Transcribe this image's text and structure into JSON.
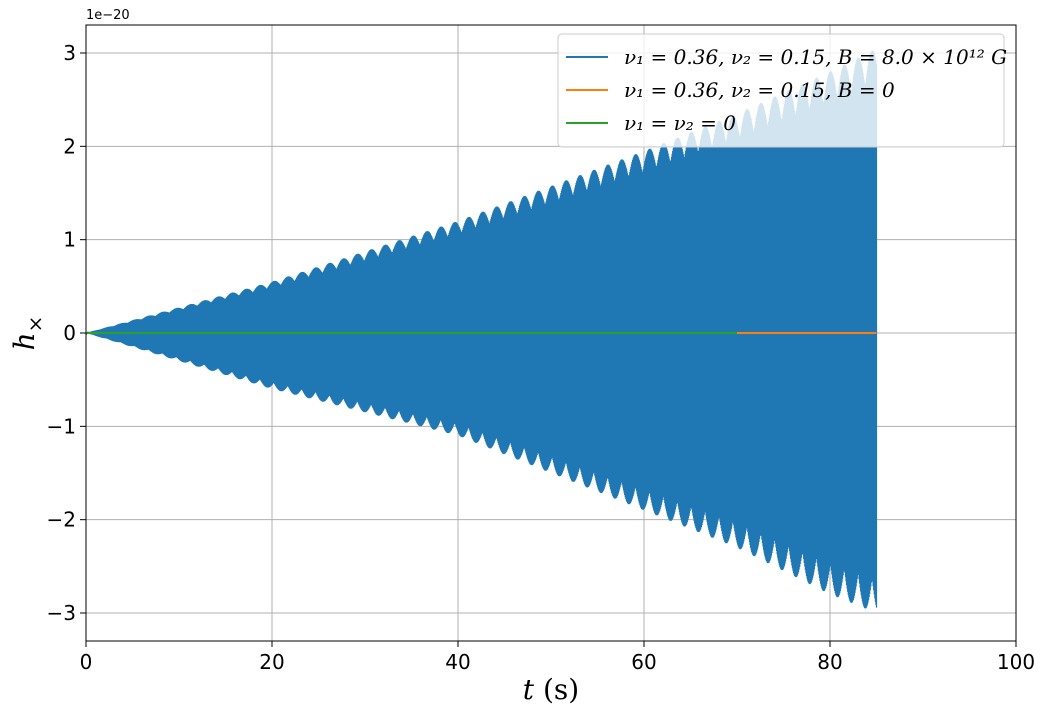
{
  "chart_data": {
    "type": "line",
    "xlabel": "t (s)",
    "ylabel": "h×",
    "xlim": [
      0,
      100
    ],
    "ylim": [
      -3.3e-20,
      3.3e-20
    ],
    "x_ticks": [
      0,
      20,
      40,
      60,
      80,
      100
    ],
    "y_ticks": [
      -3,
      -2,
      -1,
      0,
      1,
      2,
      3
    ],
    "y_offset_text": "1e−20",
    "grid": true,
    "legend_position": "top-right",
    "series": [
      {
        "name": "ν₁ = 0.36, ν₂ = 0.15, B = 8.0 × 10¹² G",
        "color": "#1f77b4",
        "style": "oscillation",
        "x_range": [
          0,
          85
        ],
        "envelope_upper": [
          [
            0,
            0
          ],
          [
            20,
            0.55
          ],
          [
            40,
            1.2
          ],
          [
            60,
            1.95
          ],
          [
            70,
            2.35
          ],
          [
            80,
            2.8
          ],
          [
            85,
            3.05
          ]
        ],
        "envelope_lower": [
          [
            0,
            0
          ],
          [
            20,
            -0.6
          ],
          [
            40,
            -1.1
          ],
          [
            60,
            -1.9
          ],
          [
            70,
            -2.3
          ],
          [
            80,
            -2.8
          ],
          [
            85,
            -3.0
          ]
        ],
        "y_scale": 1e-20
      },
      {
        "name": "ν₁ = 0.36, ν₂ = 0.15, B = 0",
        "color": "#ff7f0e",
        "style": "flat",
        "x": [
          0,
          85
        ],
        "y": [
          0,
          0
        ]
      },
      {
        "name": "ν₁ = ν₂ = 0",
        "color": "#2ca02c",
        "style": "flat",
        "x": [
          0,
          70
        ],
        "y": [
          0,
          0
        ]
      }
    ]
  }
}
